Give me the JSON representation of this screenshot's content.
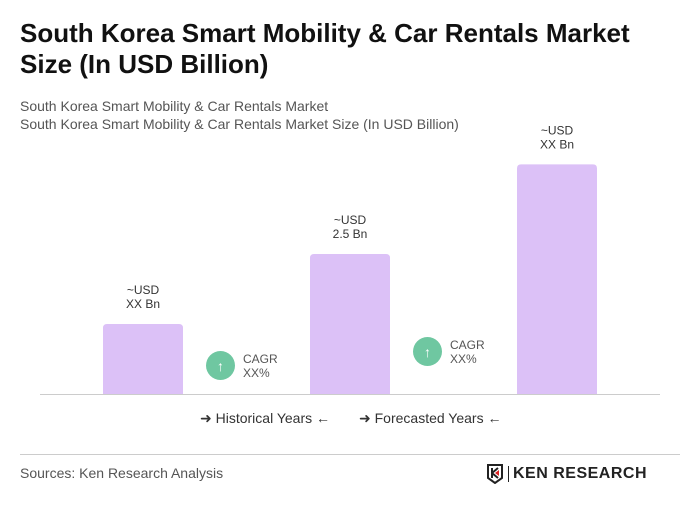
{
  "title": "South Korea Smart Mobility & Car Rentals Market Size (In USD Billion)",
  "subtitle1": "South Korea Smart Mobility & Car Rentals Market",
  "subtitle2": "South Korea Smart Mobility & Car Rentals Market Size (In USD Billion)",
  "chart_data": {
    "type": "bar",
    "categories": [
      "",
      "",
      ""
    ],
    "values": [
      1.25,
      2.5,
      4.1
    ],
    "data_labels": [
      [
        "~USD",
        "XX Bn"
      ],
      [
        "~USD",
        "2.5 Bn"
      ],
      [
        "~USD",
        "XX Bn"
      ]
    ],
    "bar_color": "#dcc1f7",
    "ylim": [
      0,
      4.5
    ],
    "grid": false,
    "cagr": [
      {
        "label": "CAGR",
        "value": "XX%"
      },
      {
        "label": "CAGR",
        "value": "XX%"
      }
    ],
    "cagr_color": "#6fc7a1",
    "legend": [
      "Historical Years",
      "Forecasted Years"
    ]
  },
  "sources": "Sources: Ken Research Analysis",
  "logo": "KEN RESEARCH"
}
